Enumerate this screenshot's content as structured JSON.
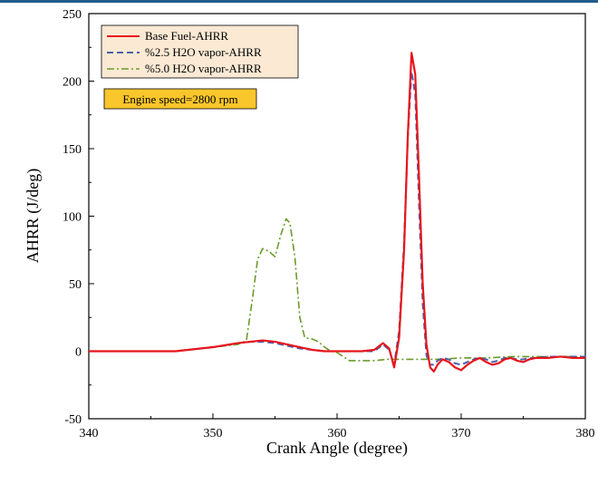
{
  "chart_data": {
    "type": "line",
    "xlabel": "Crank Angle (degree)",
    "ylabel": "AHRR (J/deg)",
    "xlim": [
      340,
      380
    ],
    "ylim": [
      -50,
      250
    ],
    "xticks": [
      340,
      350,
      360,
      370,
      380
    ],
    "yticks": [
      -50,
      0,
      50,
      100,
      150,
      200,
      250
    ],
    "grid": false,
    "legend_position": "top-left",
    "annotation": "Engine speed=2800 rpm",
    "series": [
      {
        "name": "Base Fuel-AHRR",
        "color": "#e8141b",
        "dash": "solid",
        "x": [
          340,
          344,
          347,
          348,
          350,
          352,
          353,
          354,
          355,
          356,
          357,
          358,
          359,
          360,
          361,
          362,
          363,
          363.7,
          364.2,
          364.6,
          365,
          365.4,
          365.7,
          366,
          366.3,
          366.6,
          366.9,
          367.2,
          367.5,
          367.8,
          368.1,
          368.5,
          369,
          369.5,
          370,
          370.5,
          371,
          371.5,
          372,
          372.5,
          373,
          373.5,
          374,
          374.5,
          375,
          375.5,
          376,
          377,
          378,
          379,
          380
        ],
        "y": [
          0,
          0,
          0,
          1,
          3,
          6,
          7,
          8,
          7,
          5,
          3,
          1,
          0,
          0,
          0,
          0,
          1,
          6,
          2,
          -12,
          10,
          75,
          160,
          221,
          205,
          130,
          50,
          5,
          -12,
          -15,
          -10,
          -6,
          -8,
          -12,
          -14,
          -10,
          -7,
          -5,
          -8,
          -10,
          -9,
          -6,
          -5,
          -7,
          -8,
          -6,
          -5,
          -5,
          -4,
          -5,
          -5
        ]
      },
      {
        "name": "%2.5 H2O vapor-AHRR",
        "color": "#4b5fa8",
        "dash": "dashed",
        "x": [
          340,
          344,
          347,
          348,
          350,
          352,
          353,
          354,
          355,
          356,
          357,
          358,
          359,
          360,
          361,
          362,
          363,
          363.7,
          364.2,
          364.6,
          365,
          365.4,
          365.7,
          366,
          366.3,
          366.6,
          366.9,
          367.2,
          367.5,
          367.8,
          368.1,
          368.5,
          369,
          369.5,
          370,
          370.5,
          371,
          371.5,
          372,
          372.5,
          373,
          373.5,
          374,
          374.5,
          375,
          375.5,
          376,
          377,
          378,
          379,
          380
        ],
        "y": [
          0,
          0,
          0,
          1,
          3,
          6,
          7,
          7,
          6,
          4,
          2,
          1,
          0,
          0,
          0,
          0,
          0,
          5,
          1,
          -10,
          15,
          80,
          158,
          207,
          190,
          110,
          35,
          -3,
          -10,
          -10,
          -7,
          -5,
          -6,
          -9,
          -10,
          -8,
          -6,
          -5,
          -6,
          -8,
          -7,
          -5,
          -5,
          -6,
          -6,
          -5,
          -5,
          -4,
          -4,
          -4,
          -4
        ]
      },
      {
        "name": "%5.0 H2O vapor-AHRR",
        "color": "#6a9a2b",
        "dash": "dashdot",
        "x": [
          340,
          344,
          347,
          348,
          350,
          351,
          352,
          352.7,
          353.2,
          353.6,
          354,
          354.5,
          355,
          355.5,
          355.9,
          356.2,
          356.6,
          357,
          357.4,
          358,
          358.5,
          359,
          359.5,
          360,
          361,
          362,
          363,
          364,
          366,
          368,
          370,
          372,
          374,
          376,
          378,
          380
        ],
        "y": [
          0,
          0,
          0,
          1,
          3,
          4,
          5,
          8,
          40,
          68,
          76,
          74,
          70,
          87,
          98,
          95,
          70,
          25,
          10,
          9,
          7,
          3,
          0,
          -1,
          -7,
          -7,
          -7,
          -6,
          -6,
          -6,
          -5,
          -5,
          -4,
          -4,
          -4,
          -4
        ]
      }
    ]
  }
}
